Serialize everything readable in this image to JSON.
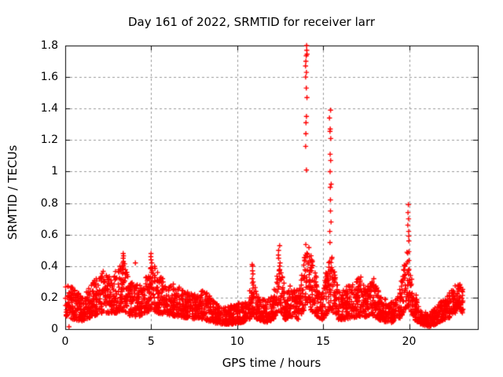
{
  "chart_data": {
    "type": "scatter",
    "title": "Day 161 of 2022, SRMTID for receiver larr",
    "xlabel": "GPS time / hours",
    "ylabel": "SRMTID / TECUs",
    "xlim": [
      0,
      24
    ],
    "ylim": [
      0,
      1.8
    ],
    "xtick_values": [
      0,
      5,
      10,
      15,
      20
    ],
    "xtick_labels": [
      "0",
      "5",
      "10",
      "15",
      "20"
    ],
    "ytick_values": [
      0,
      0.2,
      0.4,
      0.6,
      0.8,
      1.0,
      1.2,
      1.4,
      1.6,
      1.8
    ],
    "ytick_labels": [
      "0",
      "0.2",
      "0.4",
      "0.6",
      "0.8",
      "1",
      "1.2",
      "1.4",
      "1.6",
      "1.8"
    ],
    "legend": null,
    "grid": {
      "show": true,
      "style": "dashed",
      "color": "#9a9a9a"
    },
    "frame_color": "#000000",
    "marker": "plus",
    "marker_color": "#ff0000",
    "points_per_hour": 125,
    "note": "Dense 24h scatter reconstructed from the plotted envelope: nodes are [hour, band_min_TECU, band_max_TECU]; spike_columns are isolated high outlier columns read off the figure.",
    "band_envelope": {
      "nodes": [
        [
          0.0,
          0.08,
          0.3
        ],
        [
          0.5,
          0.06,
          0.26
        ],
        [
          1.0,
          0.05,
          0.2
        ],
        [
          1.6,
          0.08,
          0.3
        ],
        [
          2.1,
          0.1,
          0.38
        ],
        [
          2.6,
          0.1,
          0.34
        ],
        [
          3.0,
          0.1,
          0.38
        ],
        [
          3.4,
          0.12,
          0.44
        ],
        [
          3.8,
          0.08,
          0.3
        ],
        [
          4.3,
          0.08,
          0.28
        ],
        [
          4.7,
          0.1,
          0.33
        ],
        [
          5.0,
          0.12,
          0.44
        ],
        [
          5.4,
          0.1,
          0.36
        ],
        [
          5.9,
          0.09,
          0.3
        ],
        [
          6.5,
          0.08,
          0.28
        ],
        [
          7.1,
          0.07,
          0.24
        ],
        [
          7.7,
          0.06,
          0.22
        ],
        [
          8.1,
          0.06,
          0.26
        ],
        [
          8.6,
          0.04,
          0.18
        ],
        [
          9.1,
          0.03,
          0.15
        ],
        [
          9.7,
          0.03,
          0.16
        ],
        [
          10.2,
          0.04,
          0.17
        ],
        [
          10.6,
          0.05,
          0.2
        ],
        [
          10.9,
          0.08,
          0.3
        ],
        [
          11.2,
          0.06,
          0.24
        ],
        [
          11.7,
          0.04,
          0.18
        ],
        [
          12.1,
          0.06,
          0.22
        ],
        [
          12.45,
          0.12,
          0.42
        ],
        [
          12.8,
          0.06,
          0.26
        ],
        [
          13.2,
          0.07,
          0.28
        ],
        [
          13.6,
          0.06,
          0.24
        ],
        [
          14.05,
          0.15,
          0.58
        ],
        [
          14.45,
          0.1,
          0.4
        ],
        [
          14.9,
          0.05,
          0.22
        ],
        [
          15.45,
          0.12,
          0.5
        ],
        [
          15.9,
          0.06,
          0.24
        ],
        [
          16.3,
          0.06,
          0.27
        ],
        [
          16.7,
          0.07,
          0.28
        ],
        [
          17.1,
          0.08,
          0.33
        ],
        [
          17.5,
          0.07,
          0.26
        ],
        [
          17.9,
          0.08,
          0.32
        ],
        [
          18.4,
          0.05,
          0.2
        ],
        [
          19.0,
          0.04,
          0.17
        ],
        [
          19.5,
          0.07,
          0.28
        ],
        [
          19.95,
          0.15,
          0.55
        ],
        [
          20.3,
          0.06,
          0.25
        ],
        [
          20.7,
          0.03,
          0.13
        ],
        [
          21.2,
          0.01,
          0.1
        ],
        [
          21.7,
          0.04,
          0.16
        ],
        [
          22.1,
          0.06,
          0.2
        ],
        [
          22.5,
          0.08,
          0.26
        ],
        [
          22.85,
          0.12,
          0.3
        ],
        [
          23.15,
          0.1,
          0.26
        ]
      ]
    },
    "spike_columns": [
      {
        "x": 14.02,
        "ys": [
          1.8,
          1.77,
          1.745,
          1.735,
          1.7,
          1.67,
          1.63,
          1.6,
          1.53,
          1.47,
          1.35,
          1.31,
          1.24,
          1.16,
          1.01
        ]
      },
      {
        "x": 15.42,
        "ys": [
          1.39,
          1.34,
          1.27,
          1.255,
          1.21,
          1.11,
          1.07,
          1.0,
          0.92,
          0.9,
          0.82,
          0.75,
          0.68,
          0.62,
          0.55
        ]
      },
      {
        "x": 19.95,
        "ys": [
          0.79,
          0.74,
          0.7,
          0.66,
          0.62,
          0.59,
          0.56
        ]
      },
      {
        "x": 12.45,
        "ys": [
          0.53,
          0.5,
          0.47,
          0.45,
          0.42,
          0.4,
          0.37,
          0.35,
          0.32
        ]
      },
      {
        "x": 10.9,
        "ys": [
          0.41,
          0.4,
          0.37,
          0.35,
          0.32,
          0.3,
          0.28,
          0.26
        ]
      },
      {
        "x": 3.4,
        "ys": [
          0.48,
          0.465,
          0.45,
          0.43,
          0.42,
          0.4,
          0.38,
          0.36
        ]
      },
      {
        "x": 5.0,
        "ys": [
          0.48,
          0.46,
          0.44,
          0.42,
          0.39,
          0.36,
          0.33
        ]
      },
      {
        "x": 4.1,
        "ys": [
          0.42
        ]
      },
      {
        "x": 17.15,
        "ys": [
          0.33,
          0.31,
          0.29
        ]
      },
      {
        "x": 17.9,
        "ys": [
          0.32,
          0.3
        ]
      }
    ],
    "isolated_points": [
      [
        0.22,
        0.015
      ]
    ]
  }
}
